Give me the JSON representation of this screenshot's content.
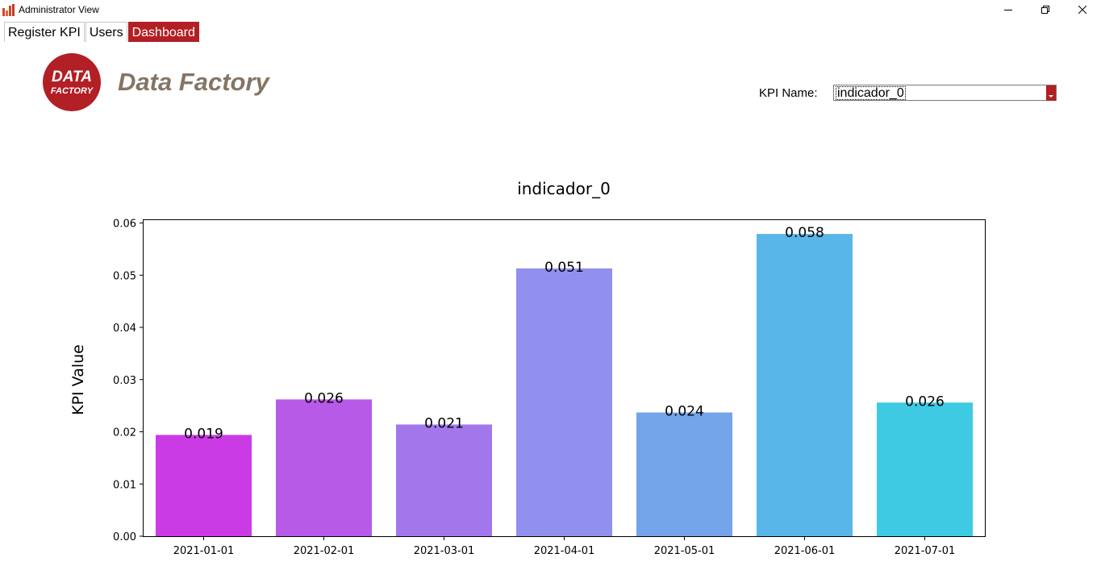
{
  "window": {
    "title": "Administrator View",
    "controls": [
      "minimize",
      "maximize",
      "close"
    ]
  },
  "tabs": [
    {
      "label": "Register KPI",
      "active": false
    },
    {
      "label": "Users",
      "active": false
    },
    {
      "label": "Dashboard",
      "active": true
    }
  ],
  "brand": {
    "logo_line1": "DATA",
    "logo_line2": "FACTORY",
    "name": "Data Factory",
    "accent_color": "#b21f24",
    "name_color": "#857566"
  },
  "kpi_selector": {
    "label": "KPI Name:",
    "value": "indicador_0"
  },
  "chart_data": {
    "type": "bar",
    "title": "indicador_0",
    "xlabel": "",
    "ylabel": "KPI Value",
    "categories": [
      "2021-01-01",
      "2021-02-01",
      "2021-03-01",
      "2021-04-01",
      "2021-05-01",
      "2021-06-01",
      "2021-07-01"
    ],
    "values": [
      0.0194,
      0.0262,
      0.0214,
      0.0513,
      0.0237,
      0.0579,
      0.0256
    ],
    "value_labels": [
      "0.019",
      "0.026",
      "0.021",
      "0.051",
      "0.024",
      "0.058",
      "0.026"
    ],
    "colors": [
      "#cb3be5",
      "#b75ae7",
      "#a377ec",
      "#9190ef",
      "#74a4e9",
      "#58b6e8",
      "#3ecae2"
    ],
    "ylim": [
      0,
      0.0607
    ],
    "yticks": [
      0.0,
      0.01,
      0.02,
      0.03,
      0.04,
      0.05,
      0.06
    ],
    "ytick_labels": [
      "0.00",
      "0.01",
      "0.02",
      "0.03",
      "0.04",
      "0.05",
      "0.06"
    ],
    "grid": false,
    "legend": "none"
  }
}
